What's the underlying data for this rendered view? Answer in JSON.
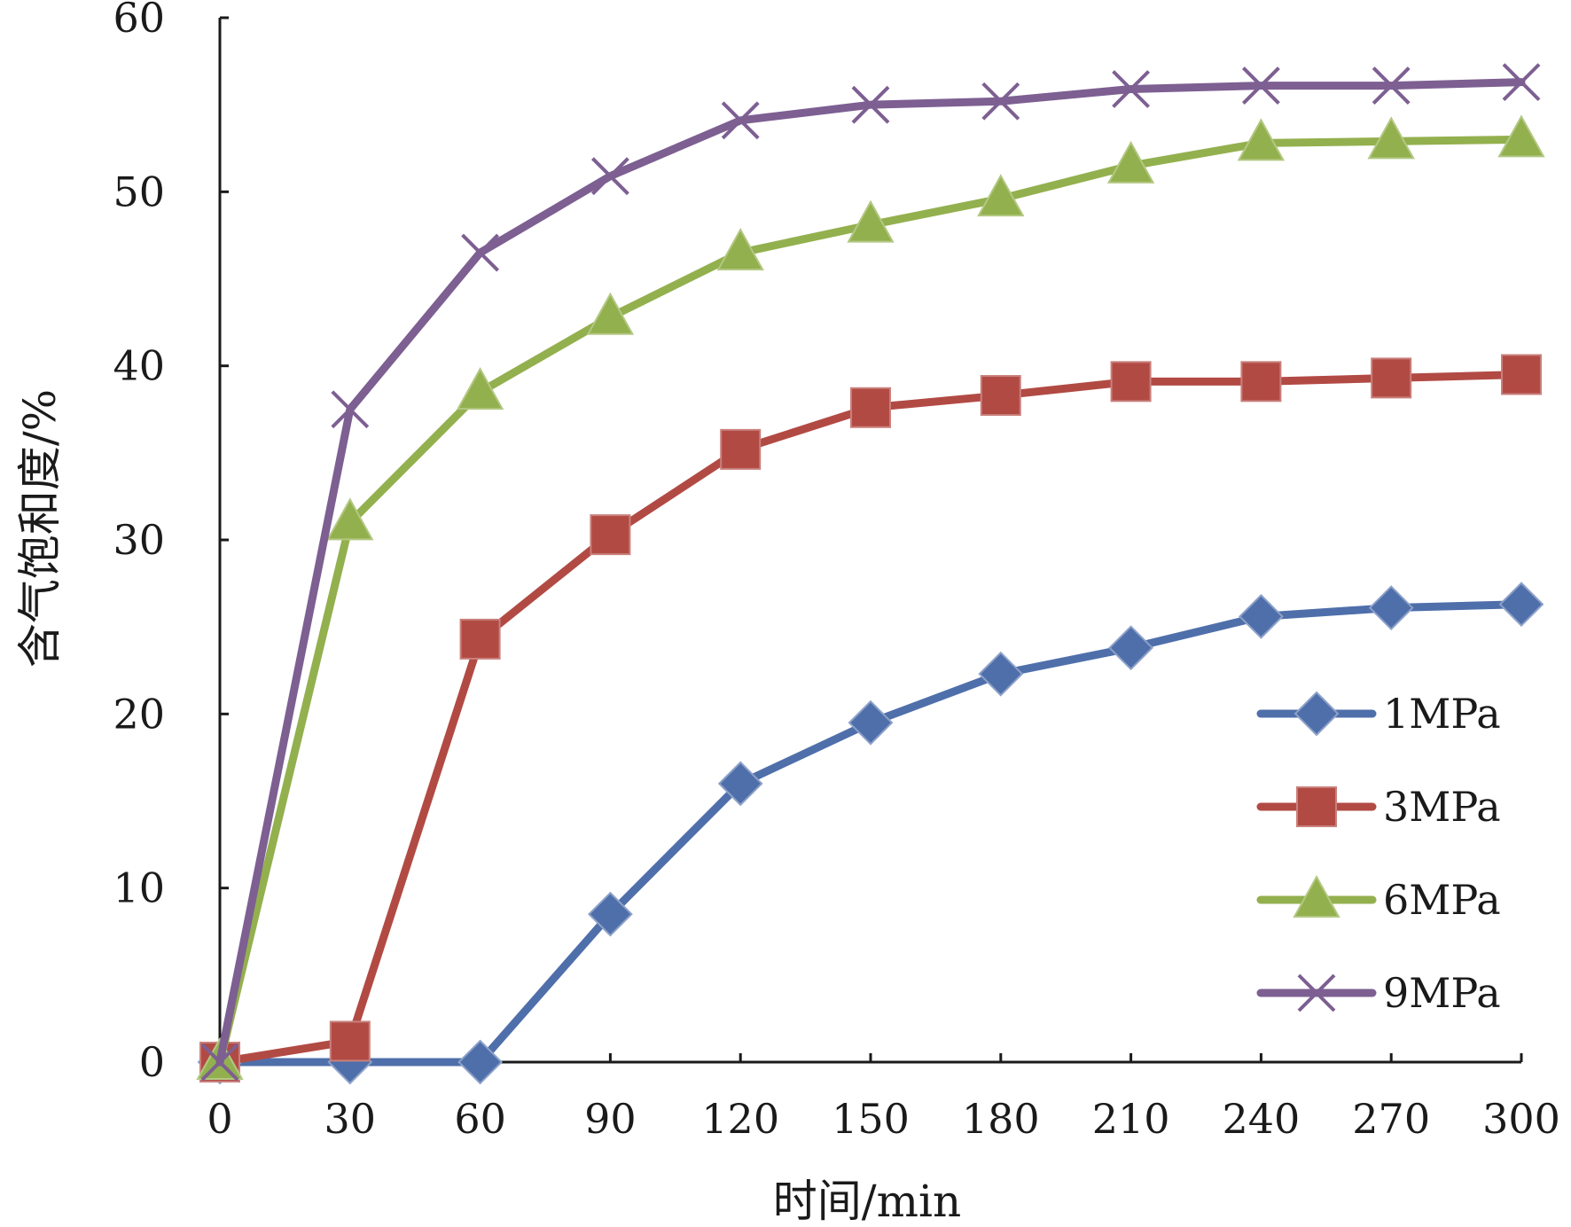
{
  "chart_data": {
    "type": "line",
    "xlabel": "时间/min",
    "ylabel": "含气饱和度/%",
    "x": [
      0,
      30,
      60,
      90,
      120,
      150,
      180,
      210,
      240,
      270,
      300
    ],
    "x_ticks": [
      "0",
      "30",
      "60",
      "90",
      "120",
      "150",
      "180",
      "210",
      "240",
      "270",
      "300"
    ],
    "xlim": [
      0,
      300
    ],
    "y_ticks": [
      "0",
      "10",
      "20",
      "30",
      "40",
      "50",
      "60"
    ],
    "ylim": [
      0,
      60
    ],
    "grid": false,
    "legend_position": "right",
    "series": [
      {
        "name": "1MPa",
        "marker": "diamond",
        "color": "#4f6fab",
        "values": [
          0,
          0,
          0,
          8.5,
          16.0,
          19.5,
          22.3,
          23.8,
          25.6,
          26.1,
          26.3
        ]
      },
      {
        "name": "3MPa",
        "marker": "square",
        "color": "#b24a44",
        "values": [
          0,
          1.2,
          24.3,
          30.3,
          35.2,
          37.6,
          38.3,
          39.1,
          39.1,
          39.3,
          39.5
        ]
      },
      {
        "name": "6MPa",
        "marker": "triangle",
        "color": "#93b04e",
        "values": [
          0,
          31.0,
          38.5,
          42.8,
          46.5,
          48.1,
          49.6,
          51.5,
          52.8,
          52.9,
          53.0
        ]
      },
      {
        "name": "9MPa",
        "marker": "x",
        "color": "#7d5f92",
        "values": [
          0,
          37.5,
          46.5,
          50.9,
          54.1,
          55.0,
          55.2,
          55.9,
          56.1,
          56.1,
          56.3
        ]
      }
    ]
  }
}
